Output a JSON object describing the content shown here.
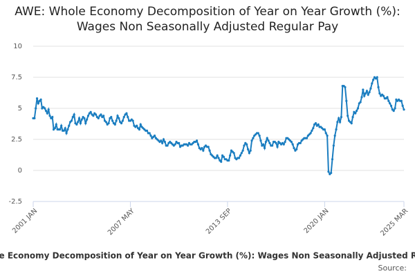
{
  "chart_data": {
    "type": "line",
    "title": "AWE: Whole Economy Decomposition of Year on Year Growth (%): Wages Non Seasonally Adjusted Regular Pay",
    "source": "Source:",
    "categories": [
      "2001 JAN",
      null,
      null,
      null,
      null,
      null,
      null,
      null,
      null,
      null,
      null,
      null,
      null,
      null,
      null,
      null,
      null,
      null,
      null,
      null,
      null,
      null,
      null,
      null,
      null,
      null,
      null,
      null,
      null,
      null,
      null,
      null,
      null,
      null,
      null,
      null,
      null,
      null,
      null,
      null,
      null,
      null,
      null,
      null,
      null,
      null,
      null,
      null,
      null,
      null,
      null,
      null,
      null,
      null,
      null,
      null,
      null,
      null,
      null,
      null,
      null,
      null,
      null,
      null,
      null,
      null,
      null,
      null,
      null,
      null,
      null,
      null,
      null,
      null,
      null,
      null,
      "2007 MAY",
      null,
      null,
      null,
      null,
      null,
      null,
      null,
      null,
      null,
      null,
      null,
      null,
      null,
      null,
      null,
      null,
      null,
      null,
      null,
      null,
      null,
      null,
      null,
      null,
      null,
      null,
      null,
      null,
      null,
      null,
      null,
      null,
      null,
      null,
      null,
      null,
      null,
      null,
      null,
      null,
      null,
      null,
      null,
      null,
      null,
      null,
      null,
      null,
      null,
      null,
      null,
      null,
      null,
      null,
      null,
      null,
      null,
      null,
      null,
      null,
      null,
      null,
      null,
      null,
      null,
      null,
      null,
      null,
      null,
      null,
      null,
      null,
      null,
      null,
      null,
      "2013 SEP",
      null,
      null,
      null,
      null,
      null,
      null,
      null,
      null,
      null,
      null,
      null,
      null,
      null,
      null,
      null,
      null,
      null,
      null,
      null,
      null,
      null,
      null,
      null,
      null,
      null,
      null,
      null,
      null,
      null,
      null,
      null,
      null,
      null,
      null,
      null,
      null,
      null,
      null,
      null,
      null,
      null,
      null,
      null,
      null,
      null,
      null,
      null,
      null,
      null,
      null,
      null,
      null,
      null,
      null,
      null,
      null,
      null,
      null,
      null,
      null,
      null,
      null,
      null,
      null,
      null,
      null,
      null,
      null,
      null,
      null,
      null,
      null,
      null,
      null,
      null,
      "2020 JAN",
      null,
      null,
      null,
      null,
      null,
      null,
      null,
      null,
      null,
      null,
      null,
      null,
      null,
      null,
      null,
      null,
      null,
      null,
      null,
      null,
      null,
      null,
      null,
      null,
      null,
      null,
      null,
      null,
      null,
      null,
      null,
      null,
      null,
      null,
      null,
      null,
      null,
      null,
      null,
      null,
      null,
      null,
      null,
      null,
      null,
      null,
      null,
      null,
      null,
      null,
      null,
      null,
      null,
      null,
      null,
      null,
      null,
      null,
      null,
      null,
      null,
      "2025 MAR"
    ],
    "series": [
      {
        "name": "AWE: Whole Economy Decomposition of Year on Year Growth (%): Wages Non Seasonally Adjusted Regular Pay",
        "color": "#1a7dc0",
        "values": [
          4.2,
          4.2,
          5.0,
          5.8,
          5.4,
          5.6,
          5.7,
          5.0,
          5.1,
          5.0,
          4.8,
          4.6,
          4.9,
          4.4,
          4.2,
          4.3,
          3.3,
          3.4,
          3.7,
          3.3,
          3.3,
          3.3,
          3.6,
          3.2,
          3.2,
          3.4,
          3.0,
          3.3,
          3.6,
          3.9,
          4.0,
          4.3,
          4.5,
          3.8,
          3.7,
          3.9,
          4.2,
          3.8,
          4.1,
          4.3,
          4.2,
          3.8,
          4.1,
          4.4,
          4.6,
          4.7,
          4.5,
          4.4,
          4.6,
          4.5,
          4.3,
          4.2,
          4.4,
          4.5,
          4.3,
          4.4,
          4.0,
          3.9,
          3.7,
          3.8,
          4.2,
          4.3,
          4.0,
          3.8,
          3.7,
          4.0,
          4.4,
          4.2,
          3.9,
          3.8,
          4.0,
          4.3,
          4.5,
          4.6,
          4.3,
          4.0,
          4.0,
          4.1,
          4.0,
          3.6,
          3.5,
          3.6,
          3.4,
          3.3,
          3.7,
          3.5,
          3.4,
          3.3,
          3.2,
          3.2,
          3.0,
          3.0,
          2.8,
          2.6,
          2.7,
          2.8,
          2.6,
          2.5,
          2.4,
          2.3,
          2.4,
          2.2,
          2.5,
          2.3,
          2.0,
          2.0,
          2.2,
          2.3,
          2.2,
          2.1,
          2.0,
          2.1,
          2.3,
          2.2,
          2.2,
          1.9,
          2.0,
          2.0,
          2.1,
          2.1,
          2.1,
          2.0,
          2.2,
          2.1,
          2.1,
          2.2,
          2.3,
          2.3,
          2.4,
          2.1,
          1.8,
          1.7,
          1.8,
          1.6,
          1.9,
          2.0,
          1.9,
          1.9,
          1.6,
          1.3,
          1.2,
          1.1,
          1.0,
          1.0,
          1.2,
          1.0,
          0.8,
          0.7,
          1.2,
          1.1,
          0.9,
          0.9,
          0.8,
          0.8,
          1.2,
          1.6,
          1.5,
          1.4,
          1.0,
          0.9,
          1.0,
          1.0,
          1.2,
          1.4,
          1.6,
          2.0,
          2.2,
          2.1,
          1.7,
          1.4,
          1.6,
          2.4,
          2.6,
          2.8,
          2.9,
          3.0,
          3.0,
          2.8,
          2.4,
          2.0,
          2.1,
          1.8,
          2.3,
          2.6,
          2.4,
          2.2,
          2.0,
          2.0,
          2.3,
          2.3,
          2.2,
          1.9,
          2.3,
          2.2,
          2.1,
          2.2,
          2.1,
          2.3,
          2.6,
          2.6,
          2.5,
          2.4,
          2.3,
          2.1,
          1.8,
          1.6,
          1.7,
          2.1,
          2.2,
          2.2,
          2.4,
          2.5,
          2.6,
          2.6,
          2.6,
          2.8,
          2.9,
          3.0,
          3.2,
          3.4,
          3.7,
          3.8,
          3.6,
          3.7,
          3.5,
          3.5,
          3.4,
          3.3,
          3.3,
          3.0,
          2.8,
          -0.1,
          -0.3,
          -0.2,
          0.9,
          2.0,
          2.8,
          3.3,
          3.9,
          4.2,
          3.9,
          4.3,
          6.8,
          6.8,
          6.7,
          5.6,
          4.4,
          4.0,
          3.9,
          3.8,
          4.3,
          4.7,
          4.6,
          4.8,
          5.0,
          5.4,
          5.5,
          5.9,
          6.5,
          6.0,
          6.2,
          6.4,
          6.1,
          6.3,
          6.6,
          7.0,
          7.3,
          7.5,
          7.4,
          7.5,
          6.7,
          6.2,
          6.0,
          6.1,
          6.0,
          5.8,
          5.8,
          5.9,
          5.6,
          5.4,
          5.2,
          4.9,
          4.8,
          5.0,
          5.7,
          5.6,
          5.7,
          5.6,
          5.6,
          5.2,
          4.9
        ]
      }
    ],
    "ylim": [
      -2.5,
      10
    ],
    "yticks": [
      -2.5,
      0,
      2.5,
      5,
      7.5,
      10
    ],
    "grid": true
  }
}
